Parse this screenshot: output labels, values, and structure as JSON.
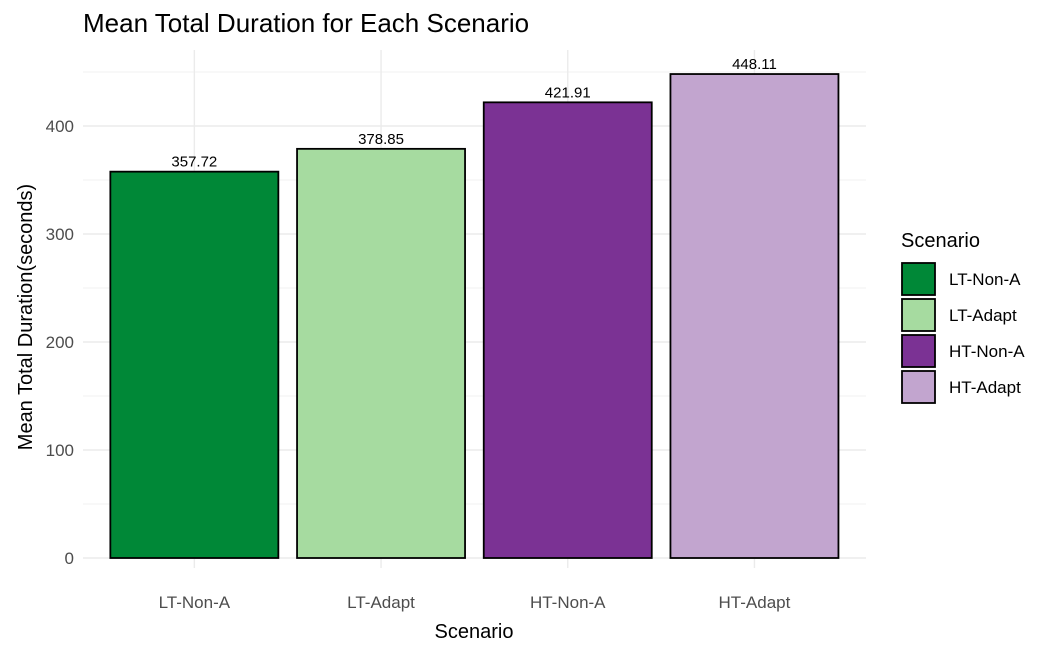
{
  "chart_data": {
    "type": "bar",
    "title": "Mean Total Duration for Each Scenario",
    "xlabel": "Scenario",
    "ylabel": "Mean Total Duration(seconds)",
    "categories": [
      "LT-Non-A",
      "LT-Adapt",
      "HT-Non-A",
      "HT-Adapt"
    ],
    "values": [
      357.72,
      378.85,
      421.91,
      448.11
    ],
    "data_labels": [
      "357.72",
      "378.85",
      "421.91",
      "448.11"
    ],
    "colors": [
      "#008837",
      "#a6dba0",
      "#7b3294",
      "#c2a5cf"
    ],
    "ylim": [
      0,
      460
    ],
    "yticks": [
      0,
      100,
      200,
      300,
      400
    ],
    "grid": true,
    "legend": {
      "title": "Scenario",
      "position": "right",
      "entries": [
        "LT-Non-A",
        "LT-Adapt",
        "HT-Non-A",
        "HT-Adapt"
      ]
    }
  }
}
